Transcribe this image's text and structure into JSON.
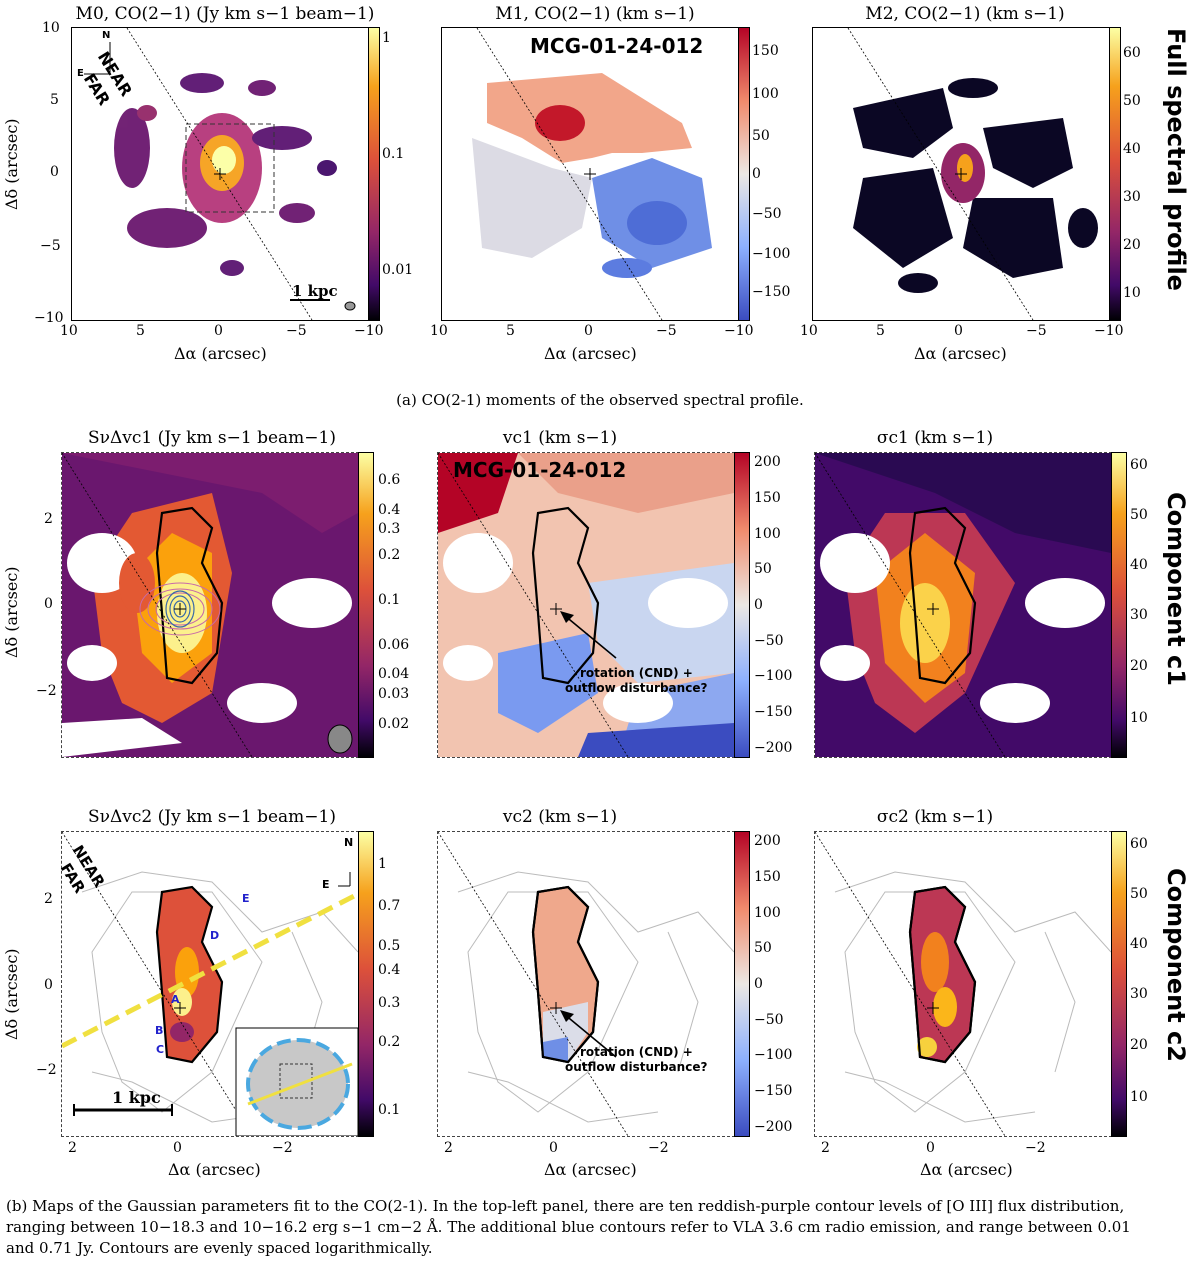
{
  "top_row": {
    "row_label": "Full spectral profile",
    "panels": [
      {
        "title": "M0, CO(2−1) (Jy km s−1 beam−1)",
        "cbar_ticks": [
          "1",
          "0.1",
          "0.01"
        ]
      },
      {
        "title": "M1, CO(2−1) (km s−1)",
        "cbar_ticks": [
          "150",
          "100",
          "50",
          "0",
          "−50",
          "−100",
          "−150"
        ]
      },
      {
        "title": "M2, CO(2−1) (km s−1)",
        "cbar_ticks": [
          "60",
          "50",
          "40",
          "30",
          "20",
          "10"
        ]
      }
    ],
    "x_ticks": [
      "10",
      "5",
      "0",
      "−5",
      "−10"
    ],
    "y_ticks": [
      "10",
      "5",
      "0",
      "−5",
      "−10"
    ],
    "galaxy_name": "MCG-01-24-012",
    "scale_bar": "1 kpc",
    "near": "NEAR",
    "far": "FAR",
    "compass_n": "N",
    "compass_e": "E"
  },
  "caption_a": "(a) CO(2-1) moments of the observed spectral profile.",
  "mid_row": {
    "row_label": "Component c1",
    "panels": [
      {
        "title": "SνΔvc1 (Jy km s−1 beam−1)",
        "cbar_ticks": [
          "0.6",
          "0.4",
          "0.3",
          "0.2",
          "0.1",
          "0.06",
          "0.04",
          "0.03",
          "0.02"
        ]
      },
      {
        "title": "vc1 (km s−1)",
        "cbar_ticks": [
          "200",
          "150",
          "100",
          "50",
          "0",
          "−50",
          "−100",
          "−150",
          "−200"
        ]
      },
      {
        "title": "σc1 (km s−1)",
        "cbar_ticks": [
          "60",
          "50",
          "40",
          "30",
          "20",
          "10"
        ]
      }
    ],
    "galaxy_name": "MCG-01-24-012",
    "annotation": [
      "rotation (CND) +",
      "outflow disturbance?"
    ]
  },
  "bot_row": {
    "row_label": "Component c2",
    "panels": [
      {
        "title": "SνΔvc2 (Jy km s−1 beam−1)",
        "cbar_ticks": [
          "1",
          "0.7",
          "0.5",
          "0.4",
          "0.3",
          "0.2",
          "0.1"
        ]
      },
      {
        "title": "vc2 (km s−1)",
        "cbar_ticks": [
          "200",
          "150",
          "100",
          "50",
          "0",
          "−50",
          "−100",
          "−150",
          "−200"
        ]
      },
      {
        "title": "σc2 (km s−1)",
        "cbar_ticks": [
          "60",
          "50",
          "40",
          "30",
          "20",
          "10"
        ]
      }
    ],
    "near": "NEAR",
    "far": "FAR",
    "scale_bar": "1 kpc",
    "points": [
      "A",
      "B",
      "C",
      "D",
      "E"
    ],
    "annotation": [
      "rotation (CND) +",
      "outflow disturbance?"
    ],
    "compass_n": "N",
    "compass_e": "E"
  },
  "zoom_axes": {
    "x_ticks": [
      "2",
      "0",
      "−2"
    ],
    "y_ticks": [
      "2",
      "0",
      "−2"
    ]
  },
  "labels": {
    "x": "Δα (arcsec)",
    "y": "Δδ (arcsec)"
  },
  "caption_b_1": "(b) Maps of the Gaussian parameters fit to the CO(2-1). In the top-left panel, there are ten reddish-purple contour levels of [O III] flux distribution,",
  "caption_b_2": "ranging between 10−18.3 and 10−16.2 erg s−1 cm−2 Å. The additional blue contours refer to VLA 3.6 cm radio emission, and range between 0.01",
  "caption_b_3": "and 0.71 Jy. Contours are evenly spaced logarithmically.",
  "colors": {
    "inferno_top": "#fcffa4",
    "inferno_mid": "#dd513a",
    "inferno_bot": "#000004",
    "coolwarm_top": "#b40426",
    "coolwarm_bot": "#3b4cc0",
    "fit_ellipse": "#4aa8e0",
    "axis_line": "#f0e040"
  }
}
